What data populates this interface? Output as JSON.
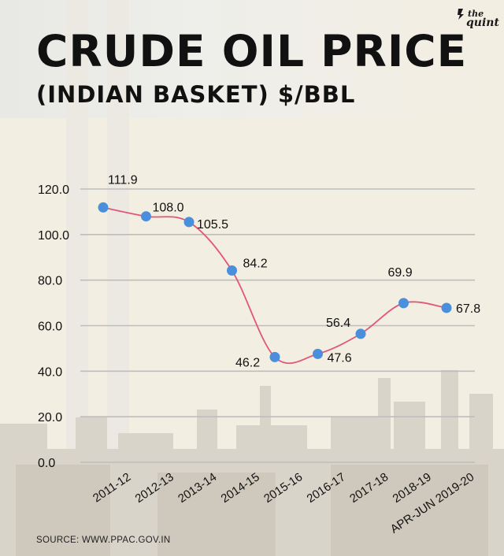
{
  "title": "CRUDE OIL PRICE",
  "subtitle": "(INDIAN BASKET) $/BBL",
  "logo": {
    "line1": "the",
    "line2": "quint"
  },
  "source": "SOURCE: WWW.PPAC.GOV.IN",
  "colors": {
    "line": "#e0577a",
    "marker": "#4a8fdb",
    "grid": "#bdbdbd",
    "text": "#111111",
    "background": "#f3eee2"
  },
  "chart_data": {
    "type": "line",
    "title": "CRUDE OIL PRICE",
    "subtitle": "(INDIAN BASKET) $/BBL",
    "categories": [
      "2011-12",
      "2012-13",
      "2013-14",
      "2014-15",
      "2015-16",
      "2016-17",
      "2017-18",
      "2018-19",
      "APR-JUN 2019-20"
    ],
    "values": [
      111.9,
      108.0,
      105.5,
      84.2,
      46.2,
      47.6,
      56.4,
      69.9,
      67.8
    ],
    "value_labels": [
      "111.9",
      "108.0",
      "105.5",
      "84.2",
      "46.2",
      "47.6",
      "56.4",
      "69.9",
      "67.8"
    ],
    "y_ticks": [
      "0.0",
      "20.0",
      "40.0",
      "60.0",
      "80.0",
      "100.0",
      "120.0"
    ],
    "ylim": [
      0,
      120
    ],
    "grid": true,
    "legend": "none"
  }
}
